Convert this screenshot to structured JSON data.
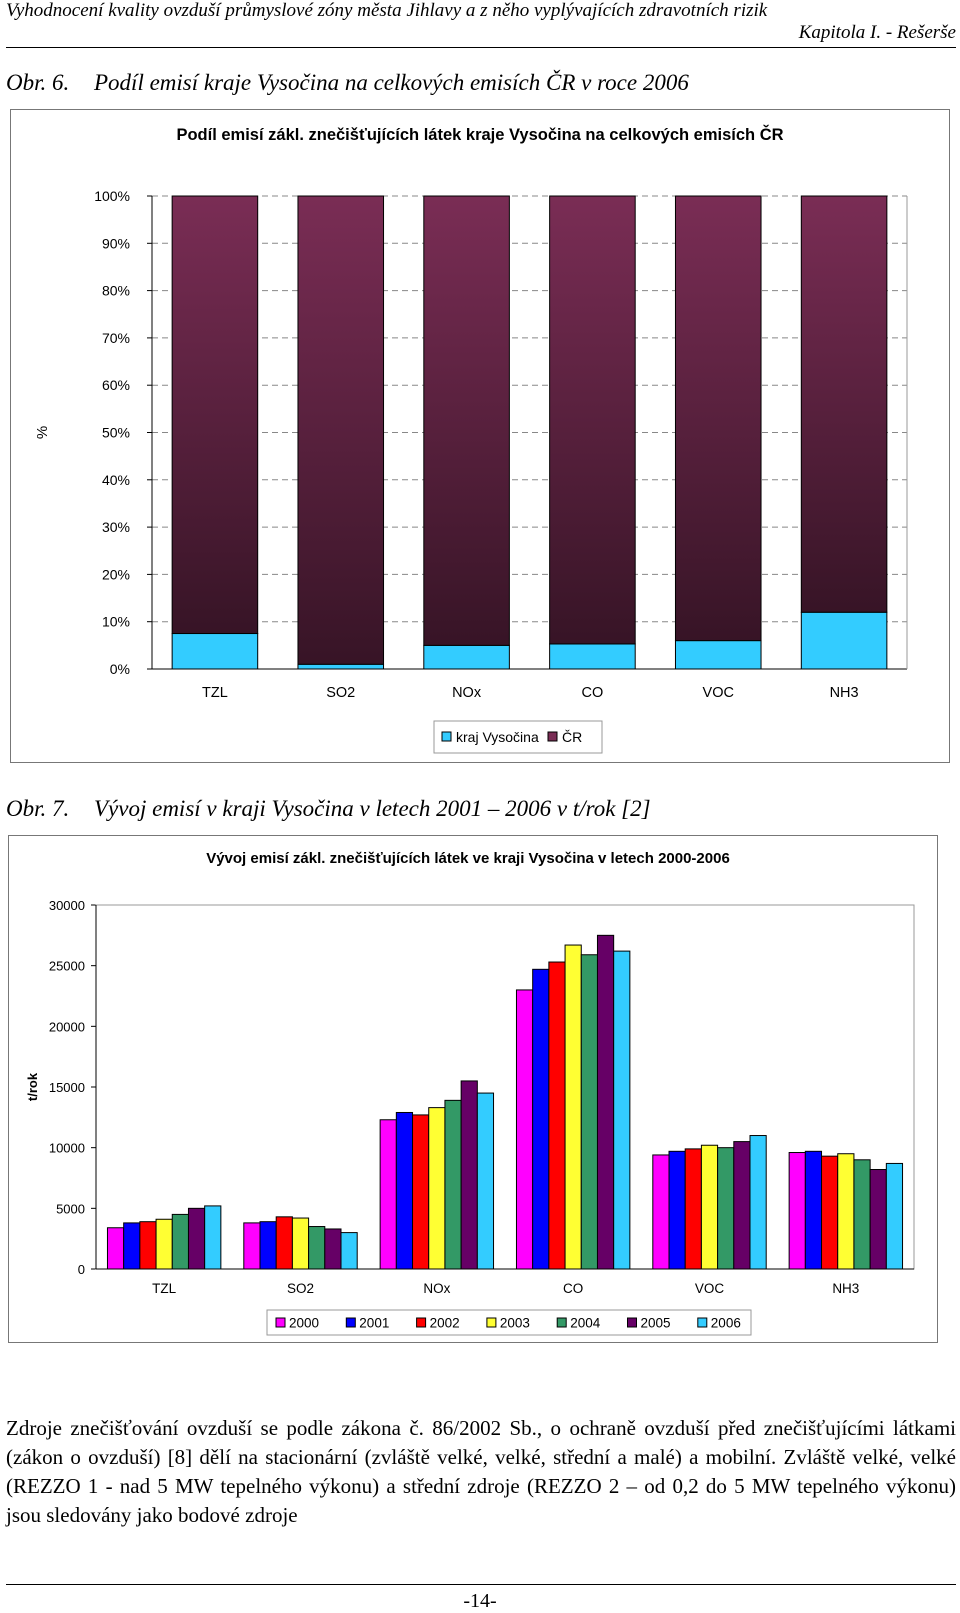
{
  "header": {
    "title": "Vyhodnocení kvality ovzduší průmyslové zóny města Jihlavy a z něho vyplývajících zdravotních rizik",
    "chapter": "Kapitola I. - Rešerše"
  },
  "figures": [
    {
      "number": "Obr. 6.",
      "caption": "Podíl emisí kraje Vysočina na celkových emisích ČR v roce 2006"
    },
    {
      "number": "Obr. 7.",
      "caption": "Vývoj emisí v kraji Vysočina v letech 2001 – 2006 v t/rok [2]"
    }
  ],
  "chart_data": [
    {
      "type": "bar",
      "stacked": true,
      "percent": true,
      "title": "Podíl emisí zákl. znečišťujících látek kraje Vysočina na celkových emisích ČR",
      "ylabel": "%",
      "xlabel": "",
      "categories": [
        "TZL",
        "SO2",
        "NOx",
        "CO",
        "VOC",
        "NH3"
      ],
      "ylim": [
        0,
        100
      ],
      "yticks": [
        0,
        10,
        20,
        30,
        40,
        50,
        60,
        70,
        80,
        90,
        100
      ],
      "ytick_suffix": "%",
      "grid": true,
      "legend_position": "bottom",
      "series": [
        {
          "name": "kraj Vysočina",
          "color": "#33ccff",
          "values": [
            7.5,
            1,
            5,
            5.3,
            6,
            12
          ]
        },
        {
          "name": "ČR",
          "color": "#7a2d55",
          "values": [
            92.5,
            99,
            95,
            94.7,
            94,
            88
          ]
        }
      ]
    },
    {
      "type": "bar",
      "title": "Vývoj emisí zákl. znečišťujících látek ve kraji Vysočina v letech 2000-2006",
      "ylabel": "t/rok",
      "xlabel": "",
      "categories": [
        "TZL",
        "SO2",
        "NOx",
        "CO",
        "VOC",
        "NH3"
      ],
      "ylim": [
        0,
        30000
      ],
      "yticks": [
        0,
        5000,
        10000,
        15000,
        20000,
        25000,
        30000
      ],
      "grid": false,
      "legend_position": "bottom",
      "series": [
        {
          "name": "2000",
          "color": "#ff00ff",
          "values": [
            3400,
            3800,
            12300,
            23000,
            9400,
            9600
          ]
        },
        {
          "name": "2001",
          "color": "#0000ff",
          "values": [
            3800,
            3900,
            12900,
            24700,
            9700,
            9700
          ]
        },
        {
          "name": "2002",
          "color": "#ff0000",
          "values": [
            3900,
            4300,
            12700,
            25300,
            9900,
            9300
          ]
        },
        {
          "name": "2003",
          "color": "#ffff33",
          "values": [
            4100,
            4200,
            13300,
            26700,
            10200,
            9500
          ]
        },
        {
          "name": "2004",
          "color": "#339966",
          "values": [
            4500,
            3500,
            13900,
            25900,
            10000,
            9000
          ]
        },
        {
          "name": "2005",
          "color": "#660066",
          "values": [
            5000,
            3300,
            15500,
            27500,
            10500,
            8200
          ]
        },
        {
          "name": "2006",
          "color": "#33ccff",
          "values": [
            5200,
            3000,
            14500,
            26200,
            11000,
            8700
          ]
        }
      ]
    }
  ],
  "body": {
    "paragraph": "Zdroje znečišťování ovzduší se podle zákona č. 86/2002 Sb., o ochraně ovzduší před znečišťujícími látkami (zákon o ovzduší) [8] dělí na stacionární (zvláště velké, velké, střední a malé) a mobilní. Zvláště velké, velké (REZZO 1 - nad 5 MW tepelného výkonu) a střední zdroje (REZZO 2 – od 0,2 do 5 MW tepelného výkonu) jsou sledovány jako bodové zdroje"
  },
  "footer": {
    "page_number": "-14-"
  }
}
